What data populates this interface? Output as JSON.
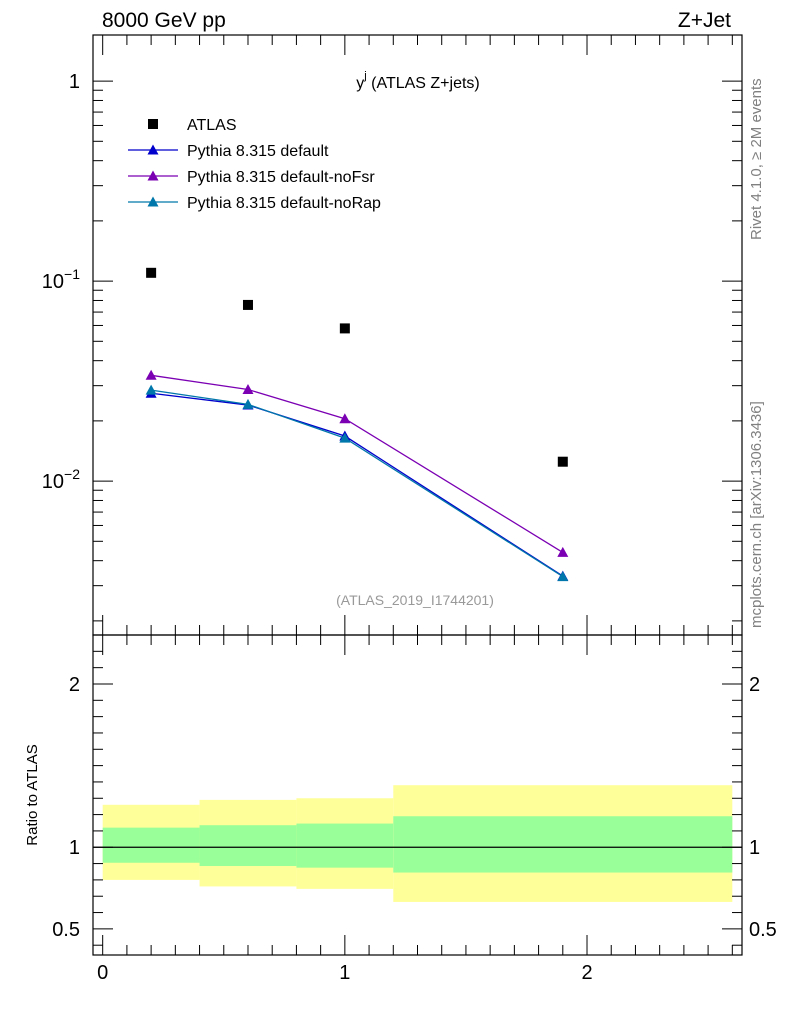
{
  "header": {
    "left": "8000 GeV pp",
    "right": "Z+Jet"
  },
  "side_labels": {
    "rivet": "Rivet 4.1.0, ≥ 2M events",
    "mcplots": "mcplots.cern.ch [arXiv:1306.3436]"
  },
  "analysis_ref": "(ATLAS_2019_I1744201)",
  "ratio_ylabel": "Ratio to ATLAS",
  "colors": {
    "atlas": "#000000",
    "default": "#0000cc",
    "noFsr": "#7b00b3",
    "noRap": "#0077aa",
    "band_outer": "#ffff99",
    "band_inner": "#99ff99"
  },
  "chart_data": [
    {
      "type": "scatter",
      "title_main": "y",
      "title_sup": "j",
      "title_rest": " (ATLAS Z+jets)",
      "yscale": "log",
      "xlim": [
        -0.04,
        2.64
      ],
      "ylim": [
        0.0017,
        1.7
      ],
      "yticks": [
        {
          "value": 1,
          "base": "1",
          "exp": ""
        },
        {
          "value": 0.1,
          "base": "10",
          "exp": "−1"
        },
        {
          "value": 0.01,
          "base": "10",
          "exp": "−2"
        }
      ],
      "series": [
        {
          "name": "ATLAS",
          "key": "atlas",
          "marker": "square",
          "line": false,
          "x": [
            0.2,
            0.6,
            1.0,
            1.9
          ],
          "y": [
            0.11,
            0.076,
            0.058,
            0.0125
          ]
        },
        {
          "name": "Pythia 8.315 default",
          "key": "default",
          "marker": "triangle",
          "line": true,
          "x": [
            0.2,
            0.6,
            1.0,
            1.9
          ],
          "y": [
            0.0275,
            0.024,
            0.0168,
            0.00335
          ]
        },
        {
          "name": "Pythia 8.315 default-noFsr",
          "key": "noFsr",
          "marker": "triangle",
          "line": true,
          "x": [
            0.2,
            0.6,
            1.0,
            1.9
          ],
          "y": [
            0.0338,
            0.0287,
            0.0205,
            0.0044
          ]
        },
        {
          "name": "Pythia 8.315 default-noRap",
          "key": "noRap",
          "marker": "triangle",
          "line": true,
          "x": [
            0.2,
            0.6,
            1.0,
            1.9
          ],
          "y": [
            0.0285,
            0.0242,
            0.0164,
            0.00333
          ]
        }
      ]
    },
    {
      "type": "area",
      "ylabel": "Ratio to ATLAS",
      "xlim": [
        -0.04,
        2.64
      ],
      "ylim": [
        0.34,
        2.3
      ],
      "xticks": [
        0,
        1,
        2
      ],
      "yticks": [
        0.5,
        1,
        2
      ],
      "reference_line": 1,
      "bins": [
        {
          "x0": 0.0,
          "x1": 0.4,
          "outer": [
            0.8,
            1.26
          ],
          "inner": [
            0.905,
            1.12
          ]
        },
        {
          "x0": 0.4,
          "x1": 0.8,
          "outer": [
            0.76,
            1.29
          ],
          "inner": [
            0.885,
            1.135
          ]
        },
        {
          "x0": 0.8,
          "x1": 1.2,
          "outer": [
            0.745,
            1.3
          ],
          "inner": [
            0.875,
            1.145
          ]
        },
        {
          "x0": 1.2,
          "x1": 2.6,
          "outer": [
            0.665,
            1.38
          ],
          "inner": [
            0.845,
            1.19
          ]
        }
      ]
    }
  ]
}
